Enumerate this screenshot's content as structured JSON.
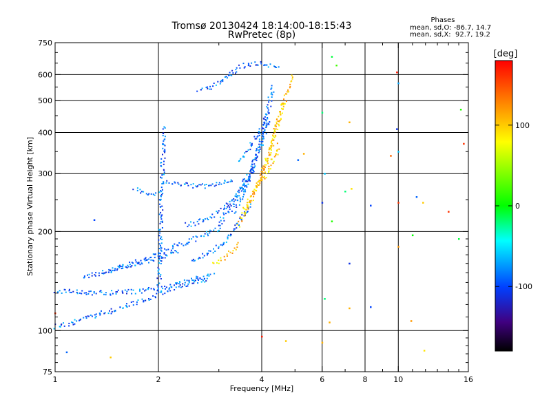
{
  "chart_data": {
    "type": "scatter",
    "title": "Tromsø 20130424 18:14:00-18:15:43",
    "subtitle": "RwPretec (8p)",
    "xlabel": "Frequency [MHz]",
    "ylabel": "Stationary phase Virtual Height [km]",
    "x_scale": "log",
    "y_scale": "log",
    "xlim": [
      1,
      16
    ],
    "ylim": [
      75,
      750
    ],
    "x_ticks": [
      1,
      2,
      4,
      6,
      8,
      10,
      16
    ],
    "x_tick_labels": [
      "1",
      "2",
      "4",
      "6",
      "8",
      "10",
      "16"
    ],
    "x_minor_ticks": [
      3,
      5,
      7,
      9,
      11,
      12,
      13,
      14,
      15
    ],
    "y_ticks": [
      75,
      100,
      200,
      300,
      400,
      500,
      600,
      750
    ],
    "y_tick_labels": [
      "75",
      "100",
      "200",
      "300",
      "400",
      "500",
      "600",
      "750"
    ],
    "grid_x": [
      2,
      4,
      6,
      8,
      10
    ],
    "grid_y": [
      100,
      200,
      300,
      400,
      500,
      600
    ],
    "stats": {
      "title": "Phases",
      "line_o": "mean, sd,O: -86.7, 14.7",
      "line_x": "mean, sd,X:  92.7, 19.2"
    },
    "colorbar": {
      "label": "[deg]",
      "range": [
        -180,
        180
      ],
      "ticks": [
        100,
        0,
        -100
      ],
      "tick_labels": [
        "100",
        "0",
        "-100"
      ],
      "colors": [
        "#ff0000",
        "#ff8000",
        "#ffff00",
        "#00ff00",
        "#00ffff",
        "#0040ff",
        "#400080",
        "#000000"
      ]
    },
    "series": [
      {
        "name": "O-mode echo traces",
        "phase_deg": -90,
        "color": "#0040ff",
        "traces": [
          {
            "f": [
              1.0,
              1.1,
              1.25,
              1.4,
              1.6,
              1.8,
              2.0,
              2.2,
              2.5,
              2.8
            ],
            "h": [
              103,
              106,
              110,
              114,
              119,
              124,
              130,
              135,
              140,
              145
            ]
          },
          {
            "f": [
              1.0,
              1.08,
              1.2,
              1.35,
              1.5,
              1.7,
              1.9,
              2.1,
              2.3,
              2.6,
              2.9
            ],
            "h": [
              133,
              132,
              131,
              131,
              131,
              132,
              134,
              137,
              140,
              145,
              150
            ]
          },
          {
            "f": [
              1.2,
              1.35,
              1.5,
              1.7,
              1.9,
              2.1,
              2.3
            ],
            "h": [
              145,
              150,
              155,
              160,
              165,
              170,
              175
            ]
          },
          {
            "f": [
              1.4,
              1.6,
              1.8,
              2.0,
              2.2,
              2.5,
              2.8,
              3.1
            ],
            "h": [
              150,
              158,
              165,
              172,
              180,
              190,
              200,
              210
            ]
          },
          {
            "f": [
              2.0,
              2.01,
              2.02,
              2.03,
              2.04,
              2.05,
              2.06,
              2.07
            ],
            "h": [
              140,
              170,
              200,
              240,
              280,
              320,
              370,
              420
            ]
          },
          {
            "f": [
              2.4,
              2.6,
              2.8,
              3.0,
              3.2,
              3.4,
              3.6,
              3.8
            ],
            "h": [
              210,
              215,
              222,
              232,
              245,
              262,
              285,
              315
            ]
          },
          {
            "f": [
              2.1,
              2.3,
              2.5,
              2.7,
              2.9,
              3.1,
              3.3
            ],
            "h": [
              285,
              280,
              277,
              276,
              278,
              283,
              292
            ]
          },
          {
            "f": [
              2.5,
              2.7,
              2.9,
              3.1,
              3.3,
              3.5,
              3.7
            ],
            "h": [
              165,
              170,
              177,
              188,
              203,
              222,
              245
            ]
          },
          {
            "f": [
              3.0,
              3.2,
              3.4,
              3.6,
              3.8,
              4.0,
              4.2
            ],
            "h": [
              215,
              235,
              260,
              290,
              330,
              380,
              440
            ]
          },
          {
            "f": [
              3.3,
              3.5,
              3.7,
              3.9,
              4.1,
              4.3
            ],
            "h": [
              230,
              260,
              300,
              360,
              440,
              560
            ]
          },
          {
            "f": [
              2.6,
              2.8,
              3.0,
              3.2,
              3.4,
              3.6,
              3.9,
              4.2,
              4.5
            ],
            "h": [
              540,
              550,
              570,
              600,
              630,
              650,
              650,
              640,
              630
            ]
          },
          {
            "f": [
              3.4,
              3.6,
              3.8,
              4.0,
              4.2
            ],
            "h": [
              330,
              350,
              380,
              420,
              470
            ]
          },
          {
            "f": [
              1.7,
              1.8,
              1.9,
              2.0
            ],
            "h": [
              270,
              265,
              262,
              260
            ]
          }
        ]
      },
      {
        "name": "X-mode echo traces",
        "phase_deg": 100,
        "color": "#ffdd00",
        "traces": [
          {
            "f": [
              3.4,
              3.6,
              3.8,
              4.0,
              4.2,
              4.4,
              4.6
            ],
            "h": [
              210,
              235,
              265,
              300,
              350,
              420,
              500
            ]
          },
          {
            "f": [
              3.5,
              3.7,
              3.9,
              4.1,
              4.3,
              4.5,
              4.7,
              4.9
            ],
            "h": [
              230,
              255,
              285,
              325,
              380,
              450,
              530,
              600
            ]
          },
          {
            "f": [
              2.9,
              3.0,
              3.1,
              3.2,
              3.3,
              3.4
            ],
            "h": [
              160,
              163,
              167,
              172,
              178,
              185
            ]
          },
          {
            "f": [
              3.9,
              4.1,
              4.3,
              4.5
            ],
            "h": [
              280,
              300,
              330,
              370
            ]
          }
        ]
      }
    ],
    "scattered_points": [
      {
        "f": 6.4,
        "h": 680,
        "phase": -10
      },
      {
        "f": 6.6,
        "h": 640,
        "phase": 20
      },
      {
        "f": 9.9,
        "h": 610,
        "phase": 170
      },
      {
        "f": 10.0,
        "h": 565,
        "phase": -70
      },
      {
        "f": 9.9,
        "h": 410,
        "phase": -110
      },
      {
        "f": 10.0,
        "h": 350,
        "phase": -60
      },
      {
        "f": 9.5,
        "h": 340,
        "phase": 140
      },
      {
        "f": 7.2,
        "h": 430,
        "phase": 110
      },
      {
        "f": 6.0,
        "h": 460,
        "phase": -20
      },
      {
        "f": 6.1,
        "h": 300,
        "phase": -60
      },
      {
        "f": 7.3,
        "h": 270,
        "phase": 90
      },
      {
        "f": 7.0,
        "h": 265,
        "phase": -20
      },
      {
        "f": 6.0,
        "h": 245,
        "phase": -110
      },
      {
        "f": 6.4,
        "h": 215,
        "phase": 10
      },
      {
        "f": 8.3,
        "h": 240,
        "phase": -100
      },
      {
        "f": 10.0,
        "h": 245,
        "phase": 160
      },
      {
        "f": 11.3,
        "h": 255,
        "phase": -90
      },
      {
        "f": 11.8,
        "h": 245,
        "phase": 100
      },
      {
        "f": 14.0,
        "h": 230,
        "phase": 160
      },
      {
        "f": 11.0,
        "h": 195,
        "phase": 0
      },
      {
        "f": 10.0,
        "h": 180,
        "phase": 120
      },
      {
        "f": 7.2,
        "h": 160,
        "phase": -110
      },
      {
        "f": 6.1,
        "h": 125,
        "phase": -20
      },
      {
        "f": 6.0,
        "h": 92,
        "phase": 110
      },
      {
        "f": 7.2,
        "h": 117,
        "phase": 110
      },
      {
        "f": 8.3,
        "h": 118,
        "phase": -100
      },
      {
        "f": 6.3,
        "h": 106,
        "phase": 110
      },
      {
        "f": 10.9,
        "h": 107,
        "phase": 120
      },
      {
        "f": 11.9,
        "h": 87,
        "phase": 90
      },
      {
        "f": 15.0,
        "h": 190,
        "phase": -10
      },
      {
        "f": 15.2,
        "h": 470,
        "phase": 10
      },
      {
        "f": 15.5,
        "h": 370,
        "phase": 160
      },
      {
        "f": 4.0,
        "h": 96,
        "phase": 170
      },
      {
        "f": 4.7,
        "h": 93,
        "phase": 100
      },
      {
        "f": 5.1,
        "h": 330,
        "phase": -90
      },
      {
        "f": 5.3,
        "h": 345,
        "phase": 110
      },
      {
        "f": 1.45,
        "h": 83,
        "phase": 100
      },
      {
        "f": 1.08,
        "h": 86,
        "phase": -90
      },
      {
        "f": 1.0,
        "h": 113,
        "phase": 160
      },
      {
        "f": 1.3,
        "h": 217,
        "phase": -100
      }
    ]
  }
}
